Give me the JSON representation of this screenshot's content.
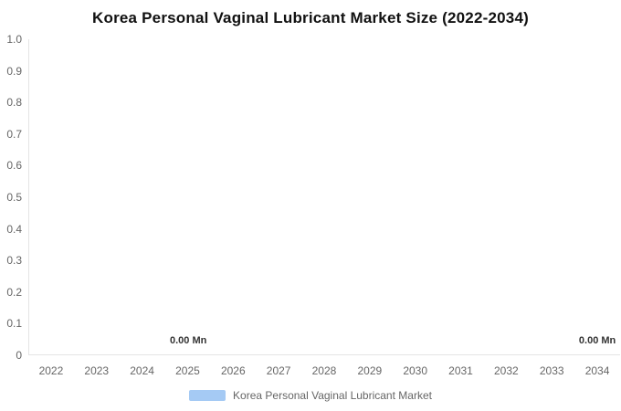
{
  "chart_data": {
    "type": "bar",
    "title": "Korea Personal Vaginal Lubricant Market Size (2022-2034)",
    "categories": [
      "2022",
      "2023",
      "2024",
      "2025",
      "2026",
      "2027",
      "2028",
      "2029",
      "2030",
      "2031",
      "2032",
      "2033",
      "2034"
    ],
    "series": [
      {
        "name": "Korea Personal Vaginal Lubricant Market",
        "color": "#a5caf4",
        "values": [
          0,
          0,
          0,
          0,
          0,
          0,
          0,
          0,
          0,
          0,
          0,
          0,
          0
        ]
      }
    ],
    "unit": "Mn",
    "ylim": [
      0,
      1.0
    ],
    "yticks": [
      "1.0",
      "0.9",
      "0.8",
      "0.7",
      "0.6",
      "0.5",
      "0.4",
      "0.3",
      "0.2",
      "0.1",
      "0"
    ],
    "grid": false,
    "legend_position": "bottom",
    "data_labels": [
      {
        "category": "2025",
        "text": "0.00 Mn"
      },
      {
        "category": "2034",
        "text": "0.00 Mn"
      }
    ],
    "legend": [
      "Korea Personal Vaginal Lubricant Market"
    ]
  },
  "colors": {
    "axis_line": "#e4e4e4",
    "tick_label": "#666666",
    "title": "#111111",
    "data_label": "#333333"
  }
}
